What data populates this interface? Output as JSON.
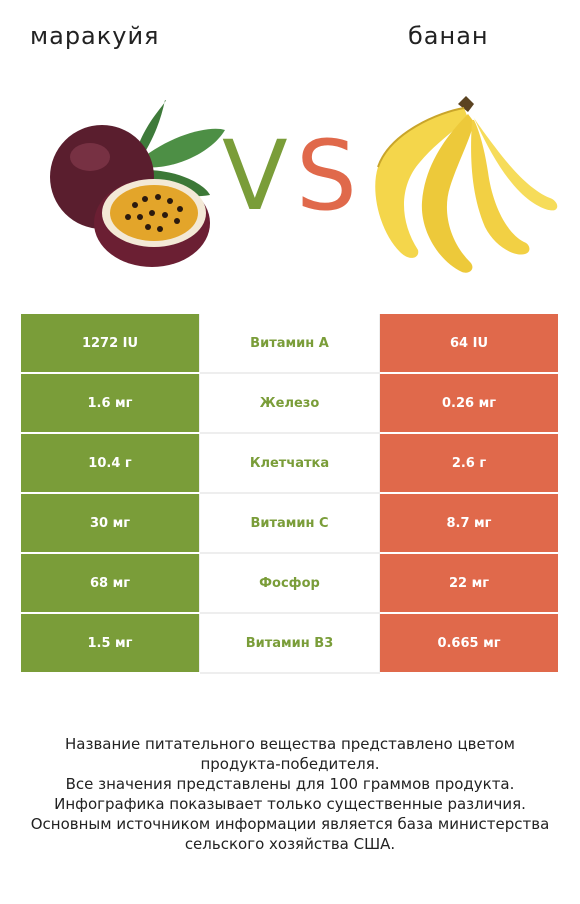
{
  "header": {
    "left_title": "маракуйя",
    "right_title": "банан",
    "vs_v": "V",
    "vs_s": "S"
  },
  "colors": {
    "winner_left": "#7a9d39",
    "winner_right": "#e0694b"
  },
  "rows": [
    {
      "left": "1272 IU",
      "nutrient": "Витамин A",
      "right": "64 IU",
      "winner": "left"
    },
    {
      "left": "1.6 мг",
      "nutrient": "Железо",
      "right": "0.26 мг",
      "winner": "left"
    },
    {
      "left": "10.4 г",
      "nutrient": "Клетчатка",
      "right": "2.6 г",
      "winner": "left"
    },
    {
      "left": "30 мг",
      "nutrient": "Витамин C",
      "right": "8.7 мг",
      "winner": "left"
    },
    {
      "left": "68 мг",
      "nutrient": "Фосфор",
      "right": "22 мг",
      "winner": "left"
    },
    {
      "left": "1.5 мг",
      "nutrient": "Витамин B3",
      "right": "0.665 мг",
      "winner": "left"
    }
  ],
  "footnote": {
    "line1": "Название питательного вещества представлено цветом",
    "line2": "продукта-победителя.",
    "line3": "Все значения представлены для 100 граммов продукта.",
    "line4": "Инфографика показывает только существенные различия.",
    "line5": "Основным источником информации является база министерства",
    "line6": "сельского хозяйства США."
  },
  "images": {
    "left_icon": "passion-fruit-icon",
    "right_icon": "banana-icon"
  }
}
